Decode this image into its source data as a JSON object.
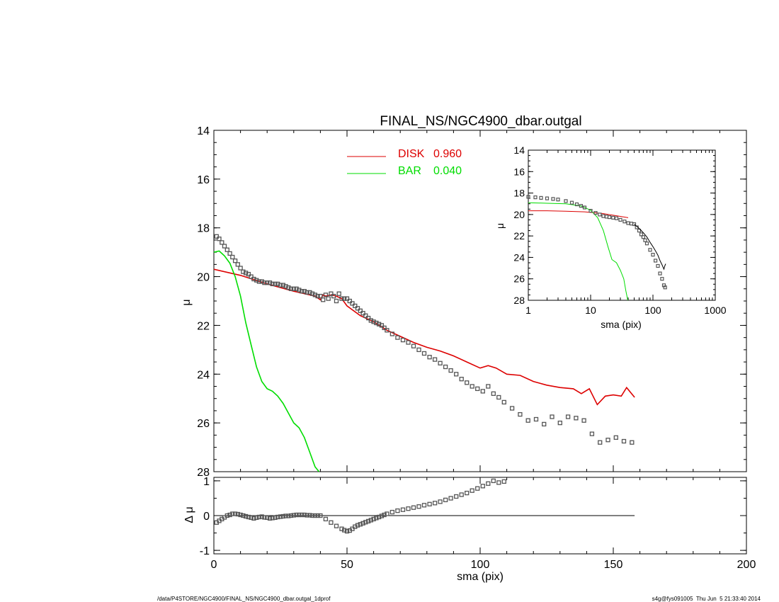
{
  "chart_data": [
    {
      "type": "line",
      "title": "FINAL_NS/NGC4900_dbar.outgal",
      "xlabel": "",
      "ylabel": "μ",
      "xlim": [
        0,
        200
      ],
      "ylim": [
        28,
        14
      ],
      "y_inverted": true,
      "yticks": [
        "14",
        "16",
        "18",
        "20",
        "22",
        "24",
        "26",
        "28"
      ],
      "legend_position": "top-center",
      "legend": [
        {
          "label": "DISK",
          "value": "0.960",
          "color": "#dd0000"
        },
        {
          "label": "BAR",
          "value": "0.040",
          "color": "#00dd00"
        }
      ],
      "series": [
        {
          "name": "DISK",
          "color": "#dd0000",
          "style": "line",
          "x": [
            0,
            10,
            20,
            30,
            38,
            40,
            41,
            42,
            44,
            46,
            48,
            50,
            55,
            60,
            65,
            70,
            75,
            80,
            85,
            90,
            95,
            100,
            103,
            106,
            110,
            115,
            120,
            125,
            130,
            135,
            138,
            141,
            144,
            147,
            150,
            153,
            155,
            158
          ],
          "y": [
            19.7,
            19.95,
            20.3,
            20.6,
            20.8,
            20.95,
            20.75,
            20.8,
            20.75,
            20.8,
            20.9,
            21.2,
            21.6,
            21.85,
            22.2,
            22.45,
            22.7,
            22.9,
            23.05,
            23.25,
            23.5,
            23.75,
            23.65,
            23.75,
            24.0,
            24.05,
            24.3,
            24.45,
            24.55,
            24.6,
            24.8,
            24.6,
            25.25,
            24.9,
            24.85,
            24.9,
            24.55,
            24.95
          ]
        },
        {
          "name": "BAR",
          "color": "#00dd00",
          "style": "line",
          "x": [
            0,
            2,
            4,
            6,
            8,
            10,
            12,
            14,
            16,
            18,
            20,
            22,
            24,
            26,
            28,
            30,
            32,
            34,
            36,
            38,
            39.5
          ],
          "y": [
            19.0,
            18.95,
            19.15,
            19.45,
            20.0,
            20.8,
            21.9,
            22.8,
            23.7,
            24.3,
            24.6,
            24.7,
            24.9,
            25.2,
            25.6,
            26.0,
            26.2,
            26.6,
            27.2,
            27.8,
            28.0
          ]
        },
        {
          "name": "",
          "color": "#555555",
          "style": "markers",
          "x": [
            1,
            2,
            3,
            4,
            5,
            6,
            7,
            8,
            9,
            10,
            11,
            12,
            13,
            14,
            15,
            16,
            17,
            18,
            19,
            20,
            21,
            22,
            23,
            24,
            25,
            26,
            27,
            28,
            29,
            30,
            31,
            32,
            33,
            34,
            35,
            36,
            37,
            38,
            39,
            40,
            41,
            42,
            43,
            44,
            45,
            46,
            47,
            48,
            49,
            50,
            51,
            52,
            53,
            54,
            55,
            56,
            57,
            58,
            59,
            60,
            61,
            62,
            63,
            64,
            65,
            67,
            69,
            71,
            73,
            75,
            77,
            79,
            81,
            83,
            85,
            87,
            89,
            91,
            93,
            95,
            97,
            99,
            101,
            103,
            105,
            107,
            109,
            112,
            115,
            118,
            121,
            124,
            127,
            130,
            133,
            136,
            139,
            142,
            145,
            148,
            151,
            154,
            157
          ],
          "y": [
            18.35,
            18.45,
            18.6,
            18.75,
            18.9,
            19.05,
            19.2,
            19.35,
            19.5,
            19.65,
            19.8,
            19.85,
            19.9,
            20.0,
            20.1,
            20.15,
            20.2,
            20.2,
            20.25,
            20.25,
            20.25,
            20.3,
            20.3,
            20.3,
            20.35,
            20.35,
            20.4,
            20.45,
            20.5,
            20.5,
            20.5,
            20.55,
            20.6,
            20.6,
            20.65,
            20.65,
            20.7,
            20.75,
            20.8,
            20.8,
            20.95,
            20.75,
            20.9,
            20.7,
            20.8,
            21.0,
            20.7,
            20.9,
            20.9,
            20.9,
            21.0,
            21.1,
            21.2,
            21.3,
            21.4,
            21.5,
            21.6,
            21.7,
            21.8,
            21.85,
            21.9,
            21.95,
            22.0,
            22.1,
            22.2,
            22.35,
            22.5,
            22.6,
            22.7,
            22.85,
            23.0,
            23.15,
            23.3,
            23.4,
            23.55,
            23.7,
            23.85,
            24.0,
            24.2,
            24.35,
            24.5,
            24.6,
            24.7,
            24.5,
            24.8,
            24.95,
            25.15,
            25.4,
            25.65,
            25.9,
            25.85,
            26.05,
            25.75,
            26.0,
            25.75,
            25.8,
            25.9,
            26.45,
            26.8,
            26.7,
            26.6,
            26.75,
            26.8
          ]
        }
      ]
    },
    {
      "type": "scatter",
      "title": "",
      "xlabel": "sma (pix)",
      "ylabel": "Δ μ",
      "xlim": [
        0,
        200
      ],
      "ylim": [
        -1,
        1
      ],
      "xticks": [
        "0",
        "50",
        "100",
        "150",
        "200"
      ],
      "yticks": [
        "-1",
        "0",
        "1"
      ],
      "zero_line": {
        "from": 0,
        "to": 158
      },
      "series": [
        {
          "name": "",
          "color": "#555555",
          "x": [
            1,
            2,
            3,
            4,
            5,
            6,
            7,
            8,
            9,
            10,
            11,
            12,
            13,
            14,
            15,
            16,
            17,
            18,
            19,
            20,
            21,
            22,
            23,
            24,
            25,
            26,
            27,
            28,
            29,
            30,
            31,
            32,
            33,
            34,
            35,
            36,
            37,
            38,
            39,
            40,
            42,
            44,
            46,
            48,
            49,
            50,
            51,
            52,
            53,
            54,
            55,
            56,
            57,
            58,
            59,
            60,
            61,
            62,
            63,
            64,
            65,
            67,
            69,
            71,
            73,
            75,
            77,
            79,
            81,
            83,
            85,
            87,
            89,
            91,
            93,
            95,
            97,
            99,
            101,
            103,
            105,
            107,
            109
          ],
          "y": [
            -0.2,
            -0.15,
            -0.1,
            -0.05,
            0.0,
            0.02,
            0.05,
            0.05,
            0.04,
            0.02,
            0.0,
            -0.02,
            -0.04,
            -0.06,
            -0.08,
            -0.06,
            -0.04,
            -0.03,
            -0.05,
            -0.06,
            -0.08,
            -0.07,
            -0.06,
            -0.04,
            -0.03,
            -0.02,
            -0.01,
            -0.01,
            0.0,
            0.01,
            0.02,
            0.02,
            0.02,
            0.02,
            0.01,
            0.01,
            0.0,
            0.0,
            0.0,
            0.0,
            -0.1,
            -0.2,
            -0.3,
            -0.38,
            -0.42,
            -0.45,
            -0.43,
            -0.38,
            -0.32,
            -0.28,
            -0.25,
            -0.22,
            -0.19,
            -0.16,
            -0.13,
            -0.1,
            -0.07,
            -0.04,
            -0.01,
            0.02,
            0.05,
            0.1,
            0.14,
            0.17,
            0.2,
            0.23,
            0.26,
            0.3,
            0.33,
            0.36,
            0.4,
            0.45,
            0.5,
            0.55,
            0.6,
            0.65,
            0.72,
            0.78,
            0.85,
            0.92,
            1.0,
            0.95,
            0.98
          ]
        }
      ]
    },
    {
      "type": "line",
      "title": "",
      "xlabel": "sma (pix)",
      "ylabel": "μ",
      "x_scale": "log",
      "xlim": [
        1,
        1000
      ],
      "ylim": [
        28,
        14
      ],
      "y_inverted": true,
      "xticks": [
        "1",
        "10",
        "100",
        "1000"
      ],
      "yticks": [
        "14",
        "16",
        "18",
        "20",
        "22",
        "24",
        "26",
        "28"
      ],
      "series": [
        {
          "name": "",
          "color": "#dd0000",
          "style": "line",
          "x": [
            1,
            2,
            4,
            8,
            15,
            25,
            40
          ],
          "y": [
            19.65,
            19.65,
            19.7,
            19.75,
            19.9,
            20.1,
            20.3
          ]
        },
        {
          "name": "",
          "color": "#00dd00",
          "style": "line",
          "x": [
            1,
            2,
            4,
            7,
            10,
            13,
            16,
            19,
            22,
            26,
            30,
            34,
            37,
            39.5
          ],
          "y": [
            18.9,
            18.95,
            19.0,
            19.2,
            19.6,
            20.3,
            21.5,
            23.0,
            24.2,
            24.5,
            25.2,
            26.0,
            27.2,
            28.0
          ]
        },
        {
          "name": "",
          "color": "#555555",
          "style": "markers",
          "x": [
            1,
            1.3,
            1.6,
            2,
            2.5,
            3,
            4,
            5,
            6,
            7,
            8,
            10,
            12,
            14,
            16,
            18,
            20,
            23,
            26,
            30,
            35,
            40,
            45,
            50,
            55,
            60,
            65,
            70,
            75,
            80,
            90,
            100,
            110,
            120,
            130,
            140,
            150,
            157
          ],
          "y": [
            18.35,
            18.4,
            18.45,
            18.5,
            18.55,
            18.6,
            18.75,
            18.9,
            19.05,
            19.2,
            19.35,
            19.65,
            19.85,
            20.0,
            20.15,
            20.2,
            20.25,
            20.3,
            20.35,
            20.5,
            20.65,
            20.8,
            20.85,
            20.9,
            21.2,
            21.5,
            21.85,
            22.1,
            22.4,
            22.7,
            23.3,
            23.75,
            24.3,
            24.8,
            25.5,
            26.0,
            26.6,
            26.8
          ]
        },
        {
          "name": "",
          "color": "#000000",
          "style": "line",
          "x": [
            50,
            60,
            70,
            80,
            90,
            100,
            110,
            120,
            130,
            140,
            150,
            155,
            160
          ],
          "y": [
            20.9,
            21.3,
            21.7,
            22.1,
            22.6,
            23.0,
            23.4,
            23.8,
            24.3,
            24.7,
            25.1,
            24.8,
            24.6
          ]
        }
      ]
    }
  ],
  "footer": {
    "left": "/data/P4STORE/NGC4900/FINAL_NS/NGC4900_dbar.outgal_1dprof",
    "right": "s4g@fys091005  Thu Jun  5 21:33:40 2014"
  }
}
